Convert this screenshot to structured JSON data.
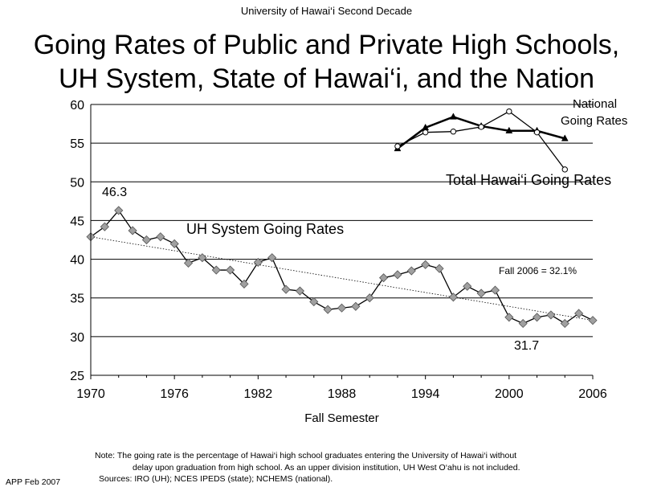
{
  "header": {
    "top_label": "University of Hawai‘i Second Decade",
    "title_line1": "Going Rates of Public and Private High Schools,",
    "title_line2": "UH System, State of Hawai‘i, and the Nation"
  },
  "chart_data": {
    "type": "line",
    "xlabel": "Fall Semester",
    "ylabel": "",
    "xlim": [
      1970,
      2006
    ],
    "ylim": [
      25,
      60
    ],
    "xticks": [
      1970,
      1976,
      1982,
      1988,
      1994,
      2000,
      2006
    ],
    "yticks": [
      25,
      30,
      35,
      40,
      45,
      50,
      55,
      60
    ],
    "grid": "horizontal",
    "series": [
      {
        "name": "UH System Going Rates",
        "marker": "diamond",
        "color": "#000000",
        "marker_fill": "#a0a0a0",
        "x": [
          1970,
          1971,
          1972,
          1973,
          1974,
          1975,
          1976,
          1977,
          1978,
          1979,
          1980,
          1981,
          1982,
          1983,
          1984,
          1985,
          1986,
          1987,
          1988,
          1989,
          1990,
          1991,
          1992,
          1993,
          1994,
          1995,
          1996,
          1997,
          1998,
          1999,
          2000,
          2001,
          2002,
          2003,
          2004,
          2005,
          2006
        ],
        "values": [
          42.9,
          44.2,
          46.3,
          43.7,
          42.5,
          42.9,
          42.0,
          39.5,
          40.2,
          38.6,
          38.6,
          36.8,
          39.6,
          40.2,
          36.1,
          35.9,
          34.5,
          33.5,
          33.7,
          33.9,
          35.0,
          37.6,
          38.0,
          38.5,
          39.3,
          38.8,
          35.1,
          36.5,
          35.6,
          36.0,
          32.5,
          31.7,
          32.5,
          32.8,
          31.7,
          33.0,
          32.1
        ]
      },
      {
        "name": "National Going Rates",
        "marker": "triangle",
        "color": "#000000",
        "x": [
          1992,
          1994,
          1996,
          1998,
          2000,
          2002,
          2004
        ],
        "values": [
          54.3,
          57.0,
          58.4,
          57.2,
          56.6,
          56.6,
          55.6
        ]
      },
      {
        "name": "Total Hawai‘i Going Rates",
        "marker": "circle",
        "color": "#000000",
        "x": [
          1992,
          1994,
          1996,
          1998,
          2000,
          2002,
          2004
        ],
        "values": [
          54.6,
          56.4,
          56.5,
          57.1,
          59.1,
          56.4,
          51.6
        ]
      }
    ],
    "trendline": {
      "from": [
        1970,
        42.9
      ],
      "to": [
        2006,
        32.1
      ],
      "style": "dotted"
    },
    "annotations": {
      "peak": "46.3",
      "low": "31.7",
      "fall_2006": "Fall 2006 = 32.1%",
      "uh_label": "UH System Going Rates",
      "national_line1": "National",
      "national_line2": "Going Rates",
      "total_label": "Total Hawai‘i Going Rates"
    }
  },
  "notes": {
    "note_line1": "Note:  The going rate is the percentage of Hawai‘i high school graduates entering the University of Hawai‘i without",
    "note_line2": "delay upon graduation from high school. As an upper division institution, UH West O‘ahu is not included.",
    "sources": "Sources:  IRO (UH); NCES IPEDS (state); NCHEMS (national).",
    "footer": "APP Feb 2007"
  }
}
